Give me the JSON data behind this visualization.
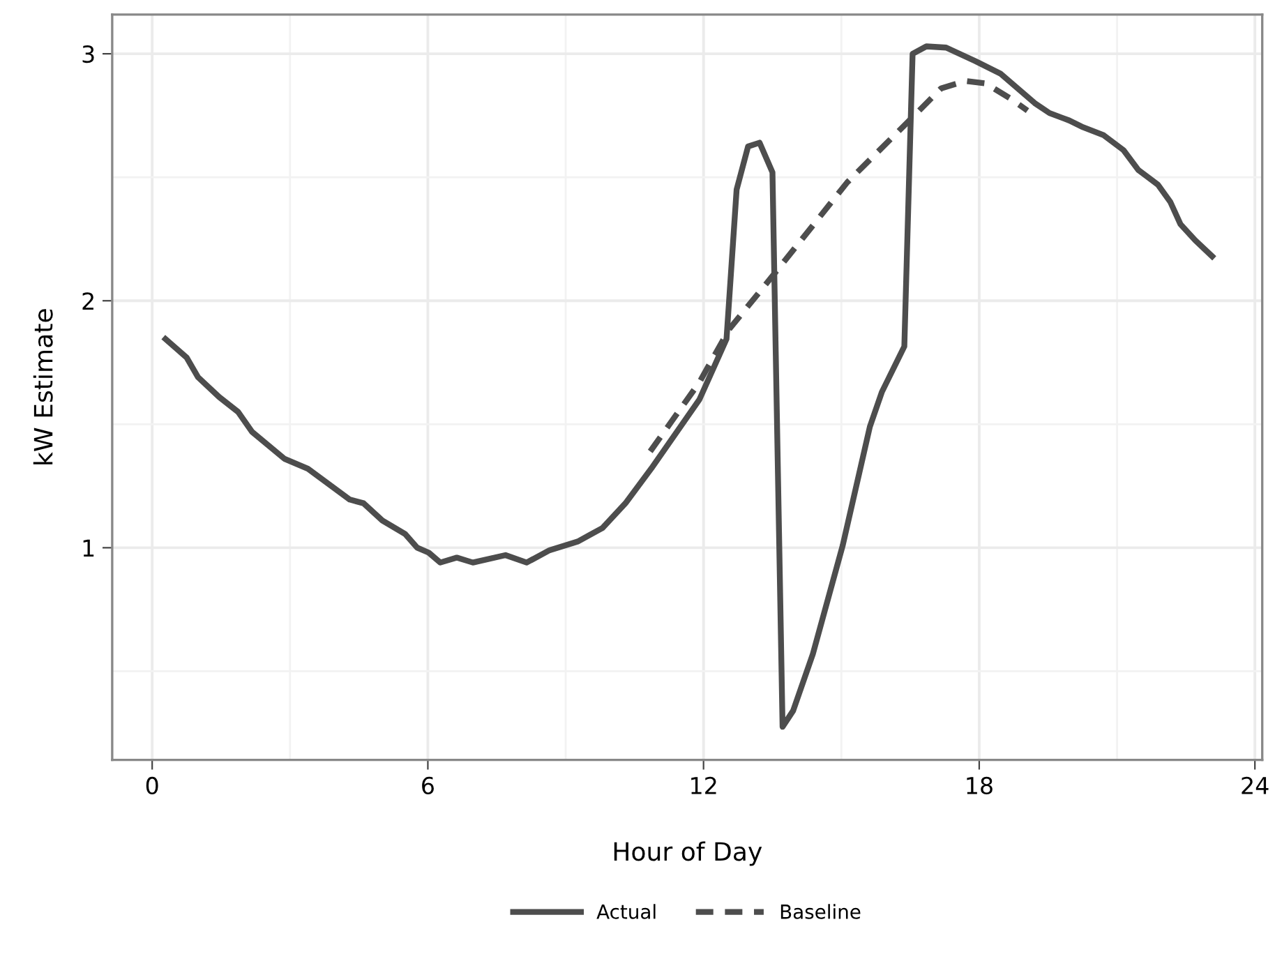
{
  "chart_data": {
    "type": "line",
    "xlabel": "Hour of Day",
    "ylabel": "kW Estimate",
    "xlim": [
      -0.87,
      24.16
    ],
    "ylim": [
      0.141,
      3.159
    ],
    "xticks": [
      0,
      6,
      12,
      18,
      24
    ],
    "yticks": [
      1,
      2,
      3
    ],
    "grid": true,
    "legend": "bottom",
    "marker": "none",
    "series": [
      {
        "name": "Actual",
        "color": "#4d4d4d",
        "line_style": "solid",
        "x": [
          0.29,
          0.75,
          1.0,
          1.46,
          1.87,
          2.17,
          2.88,
          3.39,
          4.3,
          4.6,
          5.01,
          5.51,
          5.77,
          6.02,
          6.27,
          6.63,
          6.98,
          7.69,
          8.15,
          8.65,
          9.26,
          9.8,
          10.3,
          10.86,
          11.91,
          12.5,
          12.72,
          12.97,
          13.22,
          13.5,
          13.72,
          13.95,
          14.38,
          15.03,
          15.62,
          15.88,
          16.37,
          16.55,
          16.85,
          17.28,
          17.92,
          18.46,
          19.21,
          19.53,
          19.96,
          20.23,
          20.71,
          21.14,
          21.46,
          21.89,
          22.16,
          22.38,
          22.7,
          23.07
        ],
        "values": [
          1.845,
          1.77,
          1.69,
          1.61,
          1.55,
          1.47,
          1.36,
          1.32,
          1.195,
          1.18,
          1.11,
          1.055,
          1.0,
          0.98,
          0.94,
          0.96,
          0.94,
          0.97,
          0.94,
          0.99,
          1.025,
          1.08,
          1.18,
          1.32,
          1.6,
          1.845,
          2.45,
          2.625,
          2.64,
          2.52,
          0.275,
          0.34,
          0.57,
          1.01,
          1.49,
          1.63,
          1.815,
          3.0,
          3.03,
          3.025,
          2.97,
          2.92,
          2.8,
          2.76,
          2.73,
          2.705,
          2.67,
          2.61,
          2.53,
          2.47,
          2.4,
          2.31,
          2.245,
          2.18
        ]
      },
      {
        "name": "Baseline",
        "color": "#4d4d4d",
        "line_style": "dashed",
        "x": [
          10.84,
          11.91,
          12.56,
          13.63,
          15.13,
          16.64,
          17.17,
          17.71,
          18.14,
          18.67,
          19.05
        ],
        "values": [
          1.39,
          1.67,
          1.885,
          2.13,
          2.48,
          2.76,
          2.86,
          2.89,
          2.88,
          2.82,
          2.77
        ]
      }
    ]
  }
}
